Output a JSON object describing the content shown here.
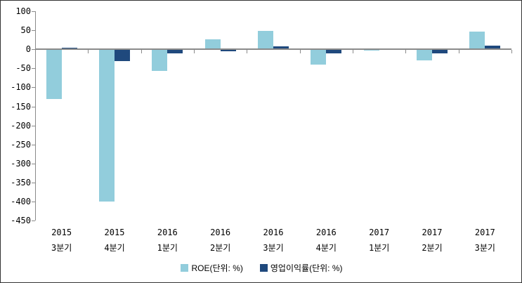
{
  "chart_data": {
    "type": "bar",
    "title": "",
    "xlabel": "",
    "ylabel": "",
    "categories": [
      {
        "year": "2015",
        "quarter": "3분기"
      },
      {
        "year": "2015",
        "quarter": "4분기"
      },
      {
        "year": "2016",
        "quarter": "1분기"
      },
      {
        "year": "2016",
        "quarter": "2분기"
      },
      {
        "year": "2016",
        "quarter": "3분기"
      },
      {
        "year": "2016",
        "quarter": "4분기"
      },
      {
        "year": "2017",
        "quarter": "1분기"
      },
      {
        "year": "2017",
        "quarter": "2분기"
      },
      {
        "year": "2017",
        "quarter": "3분기"
      }
    ],
    "series": [
      {
        "name": "ROE(단위: %)",
        "color": "#92CDDC",
        "values": [
          -130,
          -400,
          -57,
          26,
          48,
          -40,
          -4,
          -29,
          46
        ]
      },
      {
        "name": "영업이익률(단위: %)",
        "color": "#1F497D",
        "values": [
          5,
          -30,
          -10,
          -5,
          7,
          -11,
          -2,
          -10,
          10
        ]
      }
    ],
    "ylim": [
      -450,
      100
    ],
    "y_tick_step": 50,
    "grid": false,
    "legend_position": "bottom-center",
    "axis_color": "#8a8a8a",
    "text_color": "#000000"
  }
}
